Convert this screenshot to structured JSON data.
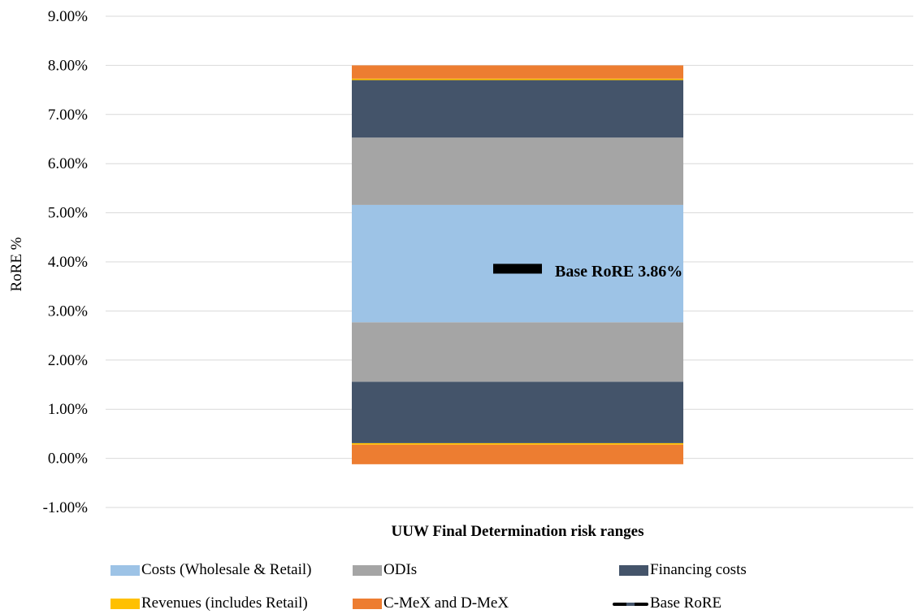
{
  "chart_data": {
    "type": "bar",
    "subtype": "stacked-range",
    "categories": [
      "UUW Final Determination risk ranges"
    ],
    "ylabel": "RoRE %",
    "xlabel": "",
    "ylim": [
      -1.0,
      9.0
    ],
    "y_ticks": [
      -1.0,
      0.0,
      1.0,
      2.0,
      3.0,
      4.0,
      5.0,
      6.0,
      7.0,
      8.0,
      9.0
    ],
    "y_tick_labels": [
      "-1.00%",
      "0.00%",
      "1.00%",
      "2.00%",
      "3.00%",
      "4.00%",
      "5.00%",
      "6.00%",
      "7.00%",
      "8.00%",
      "9.00%"
    ],
    "grid": true,
    "legend_position": "bottom",
    "segments": [
      {
        "series": "C-MeX and D-MeX",
        "from": -0.12,
        "to": 0.28,
        "color": "#ed7d31"
      },
      {
        "series": "Revenues (includes Retail)",
        "from": 0.28,
        "to": 0.31,
        "color": "#ffc000"
      },
      {
        "series": "Financing costs",
        "from": 0.31,
        "to": 1.56,
        "color": "#44546a"
      },
      {
        "series": "ODIs",
        "from": 1.56,
        "to": 2.77,
        "color": "#a5a5a5"
      },
      {
        "series": "Costs (Wholesale & Retail)",
        "from": 2.77,
        "to": 5.16,
        "color": "#9dc3e6"
      },
      {
        "series": "ODIs",
        "from": 5.16,
        "to": 6.53,
        "color": "#a5a5a5"
      },
      {
        "series": "Financing costs",
        "from": 6.53,
        "to": 7.7,
        "color": "#44546a"
      },
      {
        "series": "Revenues (includes Retail)",
        "from": 7.7,
        "to": 7.73,
        "color": "#ffc000"
      },
      {
        "series": "C-MeX and D-MeX",
        "from": 7.73,
        "to": 8.0,
        "color": "#ed7d31"
      }
    ],
    "base_rore": {
      "name": "Base RoRE",
      "value": 3.86,
      "color": "#000000"
    },
    "annotation": "Base RoRE 3.86%",
    "legend": [
      {
        "label": "Costs (Wholesale & Retail)",
        "color": "#9dc3e6",
        "kind": "box"
      },
      {
        "label": "ODIs",
        "color": "#a5a5a5",
        "kind": "box"
      },
      {
        "label": "Financing costs",
        "color": "#44546a",
        "kind": "box"
      },
      {
        "label": "Revenues (includes Retail)",
        "color": "#ffc000",
        "kind": "box"
      },
      {
        "label": "C-MeX and D-MeX",
        "color": "#ed7d31",
        "kind": "box"
      },
      {
        "label": "Base RoRE",
        "color": "#000000",
        "kind": "line"
      }
    ]
  }
}
